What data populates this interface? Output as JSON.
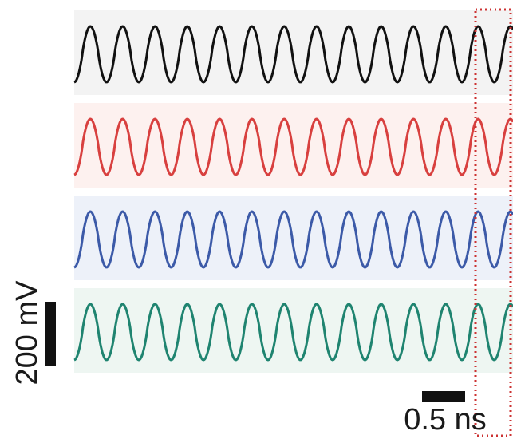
{
  "chart_data": {
    "type": "line",
    "title": "",
    "xlabel": "",
    "ylabel": "",
    "grid": false,
    "cycles_per_trace": 13.5,
    "series": [
      {
        "color": "#111111",
        "band_color": "#f3f3f3"
      },
      {
        "color": "#d8403f",
        "band_color": "#fdf1ef"
      },
      {
        "color": "#3c5aa8",
        "band_color": "#edf1f9"
      },
      {
        "color": "#1f8470",
        "band_color": "#eef6f2"
      }
    ],
    "scale_bars": {
      "voltage": {
        "value": 200,
        "unit": "mV",
        "label": "200 mV"
      },
      "time": {
        "value": 0.5,
        "unit": "ns",
        "label": "0.5 ns"
      }
    },
    "highlight": {
      "style": "dotted-box",
      "color": "#cc3333"
    }
  }
}
